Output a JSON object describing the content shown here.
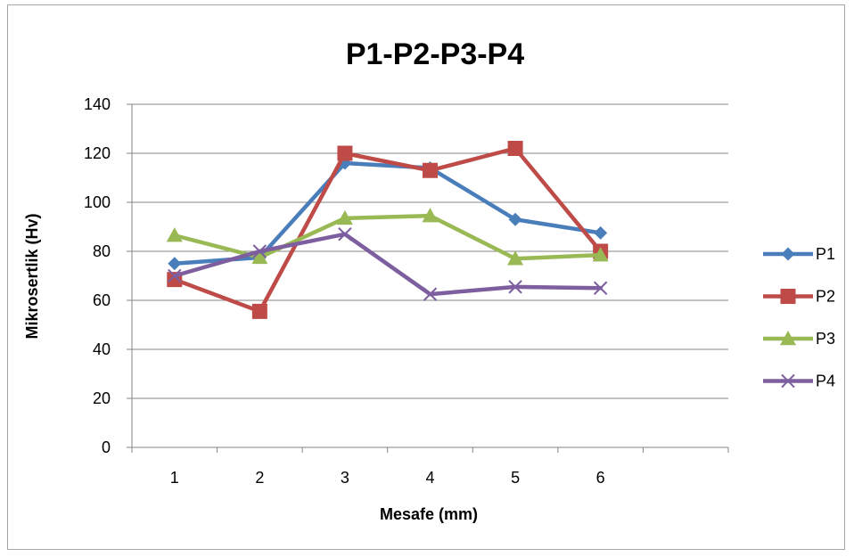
{
  "chart_data": {
    "type": "line",
    "title": "P1-P2-P3-P4",
    "xlabel": "Mesafe (mm)",
    "ylabel": "Mikrosertlik (Hv)",
    "categories": [
      "1",
      "2",
      "3",
      "4",
      "5",
      "6"
    ],
    "ylim": [
      0,
      140
    ],
    "yticks": [
      "0",
      "20",
      "40",
      "60",
      "80",
      "100",
      "120",
      "140"
    ],
    "grid": true,
    "legend_position": "right",
    "series": [
      {
        "name": "P1",
        "color": "#4a7ebb",
        "marker": "diamond",
        "values": [
          75,
          77.5,
          116,
          114,
          93,
          87.5
        ]
      },
      {
        "name": "P2",
        "color": "#be4b48",
        "marker": "square",
        "values": [
          68.5,
          55.5,
          120,
          113,
          122,
          80
        ]
      },
      {
        "name": "P3",
        "color": "#98b954",
        "marker": "triangle",
        "values": [
          86.5,
          77.5,
          93.5,
          94.5,
          77,
          78.5
        ]
      },
      {
        "name": "P4",
        "color": "#7d5fa0",
        "marker": "x",
        "values": [
          70,
          80,
          87,
          62.5,
          65.5,
          65
        ]
      }
    ]
  }
}
